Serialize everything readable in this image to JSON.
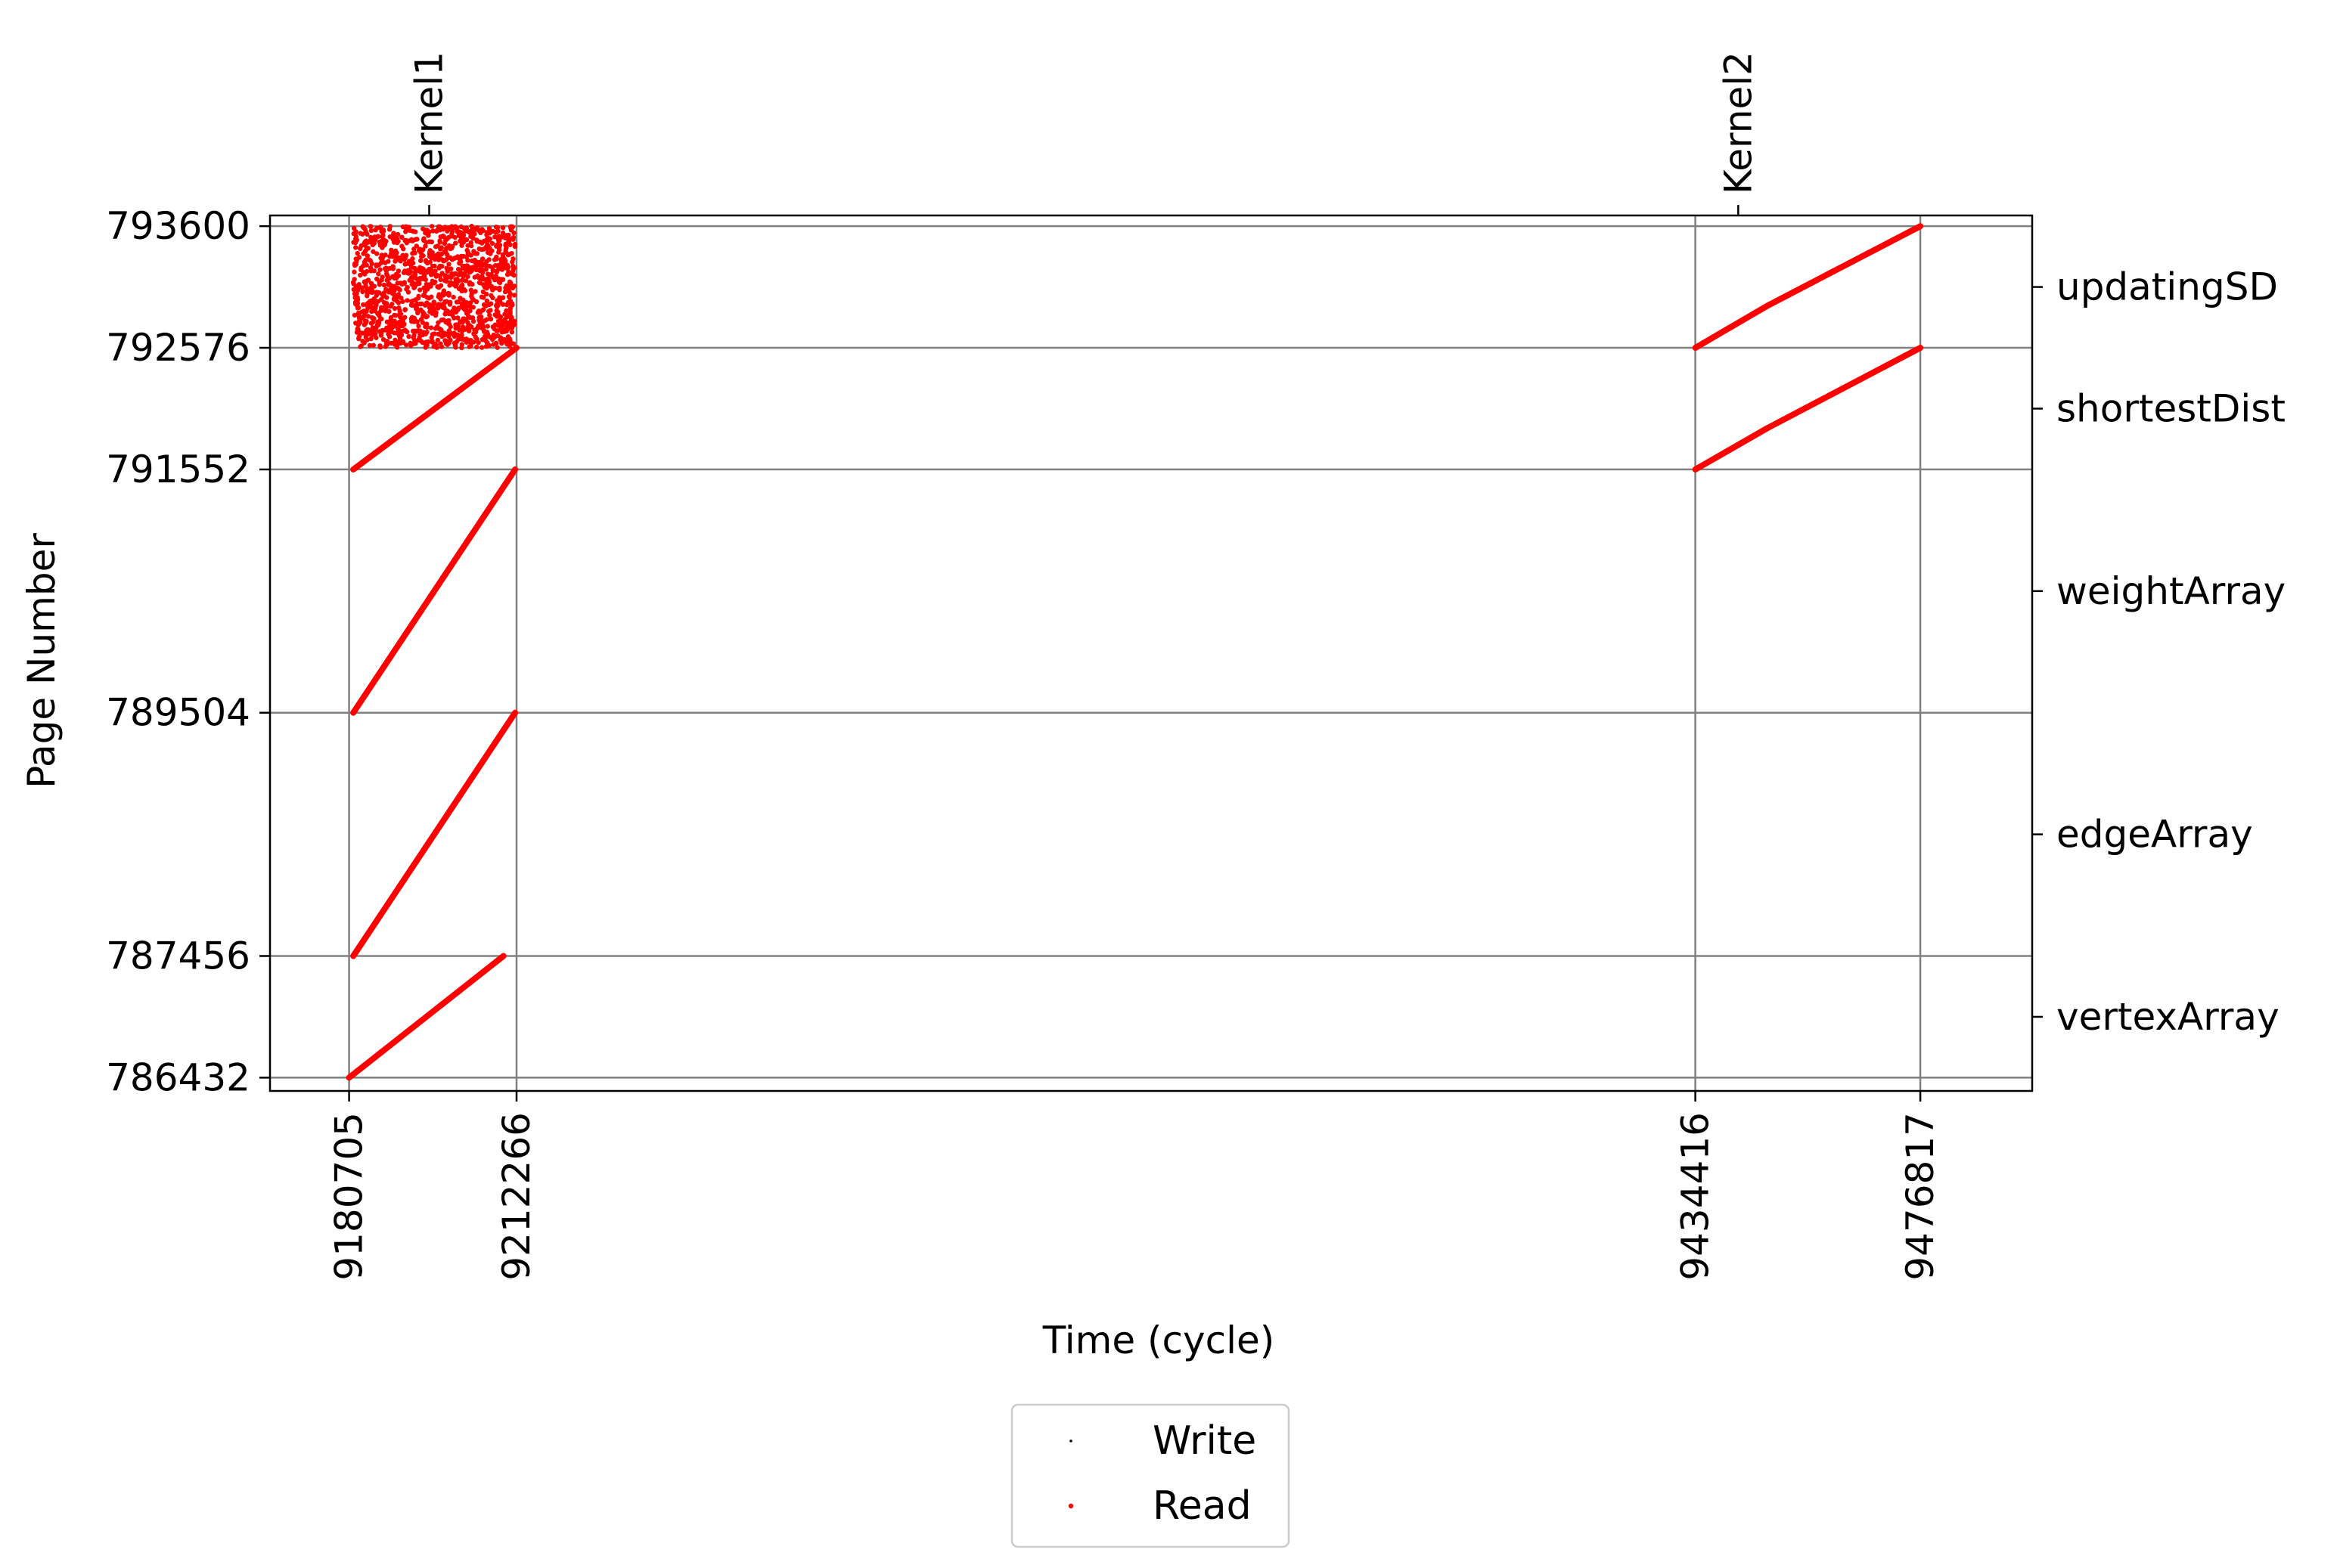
{
  "chart_data": {
    "type": "scatter",
    "xlabel": "Time (cycle)",
    "ylabel": "Page Number",
    "x_ticks": [
      9180705,
      9212266,
      9434416,
      9476817
    ],
    "y_ticks": [
      786432,
      787456,
      789504,
      791552,
      792576,
      793600
    ],
    "xlim": [
      9165800,
      9497900
    ],
    "ylim": [
      786320,
      793690
    ],
    "grid": true,
    "legend_position": "bottom-center",
    "legend": [
      {
        "name": "Write",
        "color": "#000000"
      },
      {
        "name": "Read",
        "color": "#ff0000"
      }
    ],
    "kernel_markers": [
      {
        "label": "Kernel1",
        "x": 9195800
      },
      {
        "label": "Kernel2",
        "x": 9442500
      }
    ],
    "array_labels": [
      {
        "label": "updatingSD",
        "y": 793088
      },
      {
        "label": "shortestDist",
        "y": 792064
      },
      {
        "label": "weightArray",
        "y": 790528
      },
      {
        "label": "edgeArray",
        "y": 788480
      },
      {
        "label": "vertexArray",
        "y": 786944
      }
    ],
    "series": [
      {
        "name": "Read",
        "color": "#ff0000",
        "segments": [
          {
            "x": [
              9180705,
              9209800
            ],
            "y": [
              786432,
              787456
            ]
          },
          {
            "x": [
              9181500,
              9212000
            ],
            "y": [
              787456,
              789504
            ]
          },
          {
            "x": [
              9181500,
              9212000
            ],
            "y": [
              789504,
              791552
            ]
          },
          {
            "x": [
              9181500,
              9212266
            ],
            "y": [
              791552,
              792576
            ]
          },
          {
            "x": [
              9434416,
              9448000,
              9476817
            ],
            "y": [
              791552,
              791900,
              792576
            ]
          },
          {
            "x": [
              9434416,
              9448000,
              9476817
            ],
            "y": [
              792576,
              792930,
              793600
            ]
          }
        ],
        "scatter_region": {
          "x": [
            9181500,
            9212000
          ],
          "y": [
            792576,
            793600
          ]
        }
      },
      {
        "name": "Write",
        "color": "#000000",
        "segments": []
      }
    ]
  }
}
